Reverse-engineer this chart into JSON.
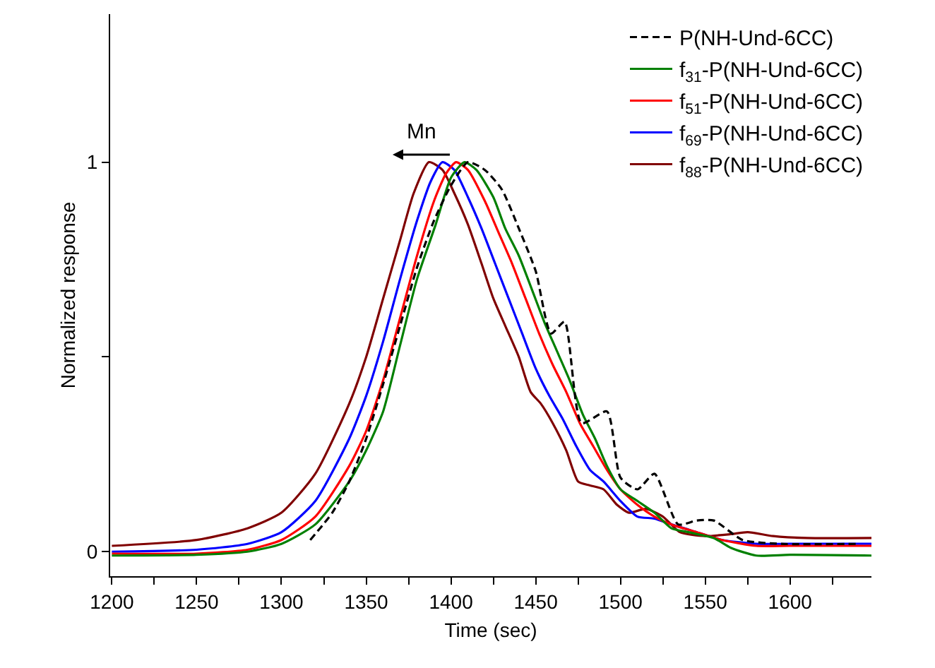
{
  "chart_data": {
    "type": "line",
    "xlabel": "Time (sec)",
    "ylabel": "Normalized response",
    "xlim": [
      1199,
      1648
    ],
    "ylim": [
      -0.063,
      1.38
    ],
    "xticks": [
      1200,
      {
        "value": 1225,
        "label": null
      },
      1250,
      {
        "value": 1275,
        "label": null
      },
      1300,
      {
        "value": 1325,
        "label": null
      },
      1350,
      {
        "value": 1375,
        "label": null
      },
      1400,
      {
        "value": 1425,
        "label": null
      },
      1450,
      {
        "value": 1475,
        "label": null
      },
      1500,
      {
        "value": 1525,
        "label": null
      },
      1550,
      {
        "value": 1575,
        "label": null
      },
      1600,
      {
        "value": 1625,
        "label": null
      }
    ],
    "yticks": [
      0,
      {
        "value": 0.5,
        "label": null
      },
      1
    ],
    "grid": false,
    "legend": "top right",
    "marker": "none",
    "annotations": [
      "Mn"
    ],
    "series": [
      {
        "name": "P(NH-Und-6CC)",
        "color": "#000000",
        "line_style": "dashed",
        "x": [
          1317,
          1330,
          1340,
          1350,
          1360,
          1370,
          1380,
          1390,
          1400,
          1410,
          1420,
          1430,
          1440,
          1450,
          1459,
          1467,
          1477,
          1492,
          1500,
          1510,
          1520,
          1534,
          1545,
          1555,
          1572,
          1595,
          1640
        ],
        "values": [
          0.03,
          0.1,
          0.18,
          0.29,
          0.43,
          0.58,
          0.73,
          0.85,
          0.94,
          1.0,
          0.98,
          0.93,
          0.83,
          0.72,
          0.56,
          0.59,
          0.33,
          0.36,
          0.19,
          0.16,
          0.2,
          0.07,
          0.08,
          0.08,
          0.03,
          0.02,
          0.02
        ]
      },
      {
        "name": "f$_{31}$-P(NH-Und-6CC)",
        "color": "#008000",
        "line_style": "solid",
        "x": [
          1200,
          1250,
          1280,
          1300,
          1320,
          1340,
          1350,
          1360,
          1370,
          1380,
          1391,
          1400,
          1408,
          1415,
          1425,
          1432,
          1440,
          1448,
          1455,
          1462,
          1470,
          1478,
          1485,
          1492,
          1500,
          1510,
          1520,
          1530,
          1540,
          1555,
          1565,
          1580,
          1600,
          1648
        ],
        "values": [
          -0.01,
          -0.008,
          0.0,
          0.02,
          0.07,
          0.18,
          0.26,
          0.36,
          0.53,
          0.7,
          0.84,
          0.96,
          1.0,
          0.98,
          0.91,
          0.83,
          0.76,
          0.67,
          0.59,
          0.52,
          0.44,
          0.35,
          0.29,
          0.22,
          0.16,
          0.13,
          0.1,
          0.06,
          0.05,
          0.035,
          0.01,
          -0.01,
          -0.008,
          -0.01
        ]
      },
      {
        "name": "f$_{51}$-P(NH-Und-6CC)",
        "color": "#ff0000",
        "line_style": "solid",
        "x": [
          1200,
          1250,
          1280,
          1300,
          1320,
          1340,
          1350,
          1360,
          1370,
          1380,
          1390,
          1397,
          1403,
          1410,
          1420,
          1428,
          1436,
          1444,
          1452,
          1460,
          1468,
          1476,
          1484,
          1492,
          1500,
          1510,
          1520,
          1530,
          1545,
          1560,
          1580,
          1600,
          1648
        ],
        "values": [
          -0.005,
          -0.005,
          0.005,
          0.03,
          0.09,
          0.22,
          0.31,
          0.44,
          0.6,
          0.76,
          0.9,
          0.97,
          1.0,
          0.98,
          0.9,
          0.82,
          0.74,
          0.65,
          0.56,
          0.48,
          0.41,
          0.33,
          0.27,
          0.21,
          0.16,
          0.12,
          0.09,
          0.07,
          0.05,
          0.03,
          0.015,
          0.015,
          0.015
        ]
      },
      {
        "name": "f$_{69}$-P(NH-Und-6CC)",
        "color": "#0000ff",
        "line_style": "solid",
        "x": [
          1200,
          1250,
          1280,
          1300,
          1320,
          1340,
          1350,
          1360,
          1370,
          1380,
          1388,
          1395,
          1402,
          1410,
          1418,
          1426,
          1434,
          1442,
          1450,
          1458,
          1466,
          1474,
          1482,
          1490,
          1500,
          1510,
          1520,
          1530,
          1545,
          1560,
          1580,
          1600,
          1648
        ],
        "values": [
          0.0,
          0.005,
          0.02,
          0.05,
          0.13,
          0.29,
          0.4,
          0.54,
          0.7,
          0.85,
          0.95,
          1.0,
          0.98,
          0.91,
          0.83,
          0.74,
          0.65,
          0.56,
          0.47,
          0.4,
          0.34,
          0.27,
          0.21,
          0.18,
          0.13,
          0.09,
          0.085,
          0.07,
          0.05,
          0.03,
          0.02,
          0.02,
          0.02
        ]
      },
      {
        "name": "f$_{88}$-P(NH-Und-6CC)",
        "color": "#800000",
        "line_style": "solid",
        "x": [
          1200,
          1250,
          1280,
          1300,
          1320,
          1340,
          1350,
          1360,
          1370,
          1378,
          1387,
          1395,
          1402,
          1410,
          1418,
          1425,
          1432,
          1440,
          1447,
          1453,
          1460,
          1468,
          1475,
          1482,
          1490,
          1498,
          1505,
          1515,
          1525,
          1535,
          1550,
          1565,
          1575,
          1590,
          1610,
          1648
        ],
        "values": [
          0.015,
          0.03,
          0.06,
          0.1,
          0.2,
          0.38,
          0.5,
          0.65,
          0.8,
          0.92,
          1.0,
          0.98,
          0.92,
          0.84,
          0.74,
          0.65,
          0.58,
          0.5,
          0.41,
          0.38,
          0.33,
          0.26,
          0.18,
          0.17,
          0.16,
          0.12,
          0.1,
          0.11,
          0.09,
          0.05,
          0.04,
          0.045,
          0.05,
          0.04,
          0.035,
          0.035
        ]
      }
    ]
  }
}
